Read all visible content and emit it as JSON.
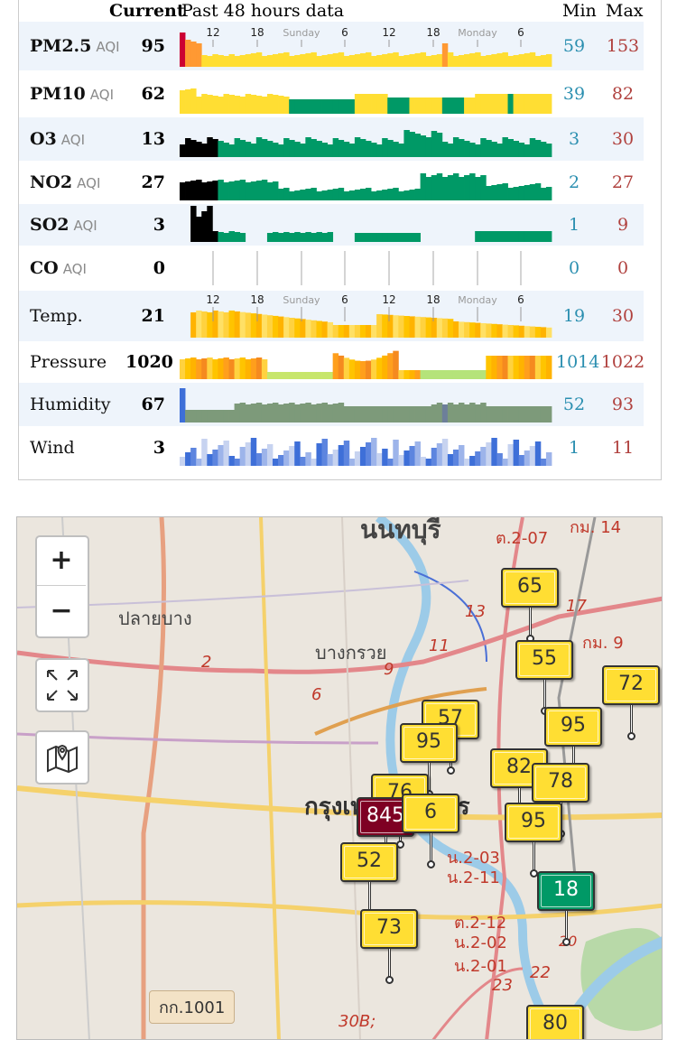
{
  "header": {
    "current": "Current",
    "past": "Past 48 hours data",
    "min": "Min",
    "max": "Max"
  },
  "ticks_top": [
    "12",
    "18",
    "Sunday",
    "6",
    "12",
    "18",
    "Monday",
    "6"
  ],
  "ticks_weather": [
    "12",
    "18",
    "Sunday",
    "6",
    "12",
    "18",
    "Monday",
    "6"
  ],
  "rows": [
    {
      "name": "PM2.5",
      "unit": "AQI",
      "current": "95",
      "min": "59",
      "max": "153",
      "bold": true
    },
    {
      "name": "PM10",
      "unit": "AQI",
      "current": "62",
      "min": "39",
      "max": "82",
      "bold": true
    },
    {
      "name": "O3",
      "unit": "AQI",
      "current": "13",
      "min": "3",
      "max": "30",
      "bold": true
    },
    {
      "name": "NO2",
      "unit": "AQI",
      "current": "27",
      "min": "2",
      "max": "27",
      "bold": true
    },
    {
      "name": "SO2",
      "unit": "AQI",
      "current": "3",
      "min": "1",
      "max": "9",
      "bold": true
    },
    {
      "name": "CO",
      "unit": "AQI",
      "current": "0",
      "min": "0",
      "max": "0",
      "bold": true
    },
    {
      "name": "Temp.",
      "unit": "",
      "current": "21",
      "min": "19",
      "max": "30",
      "bold": false
    },
    {
      "name": "Pressure",
      "unit": "",
      "current": "1020",
      "min": "1014",
      "max": "1022",
      "bold": false
    },
    {
      "name": "Humidity",
      "unit": "",
      "current": "67",
      "min": "52",
      "max": "93",
      "bold": false
    },
    {
      "name": "Wind",
      "unit": "",
      "current": "3",
      "min": "1",
      "max": "11",
      "bold": false
    }
  ],
  "colors": {
    "good": "#009966",
    "moderate": "#ffde33",
    "unhealthy_sensitive": "#ff9933",
    "unhealthy": "#cc0033",
    "hazardous": "#7e0023",
    "min": "#2b8fb0",
    "max": "#b0413e"
  },
  "map": {
    "zoom_in": "+",
    "zoom_out": "−",
    "labels": [
      "นนทบุรี",
      "ปลายบาง",
      "บางกรวย",
      "กรุงเทพมหานคร",
      "กก.1001",
      "ต.2-07",
      "กม. 14",
      "กม. 9",
      "น.2-03",
      "น.2-11",
      "ต.2-12",
      "น.2-02",
      "น.2-01",
      "30B;",
      "13",
      "11",
      "9",
      "2",
      "6",
      "17",
      "23",
      "22",
      "20"
    ],
    "markers": [
      {
        "value": "65",
        "level": "moderate"
      },
      {
        "value": "55",
        "level": "moderate"
      },
      {
        "value": "72",
        "level": "moderate"
      },
      {
        "value": "57",
        "level": "moderate"
      },
      {
        "value": "95",
        "level": "moderate"
      },
      {
        "value": "95",
        "level": "moderate"
      },
      {
        "value": "82",
        "level": "moderate"
      },
      {
        "value": "78",
        "level": "moderate"
      },
      {
        "value": "76",
        "level": "moderate"
      },
      {
        "value": "845",
        "level": "hazardous"
      },
      {
        "value": "6",
        "level": "moderate"
      },
      {
        "value": "95",
        "level": "moderate"
      },
      {
        "value": "52",
        "level": "moderate"
      },
      {
        "value": "18",
        "level": "good"
      },
      {
        "value": "73",
        "level": "moderate"
      },
      {
        "value": "80",
        "level": "moderate"
      }
    ]
  }
}
